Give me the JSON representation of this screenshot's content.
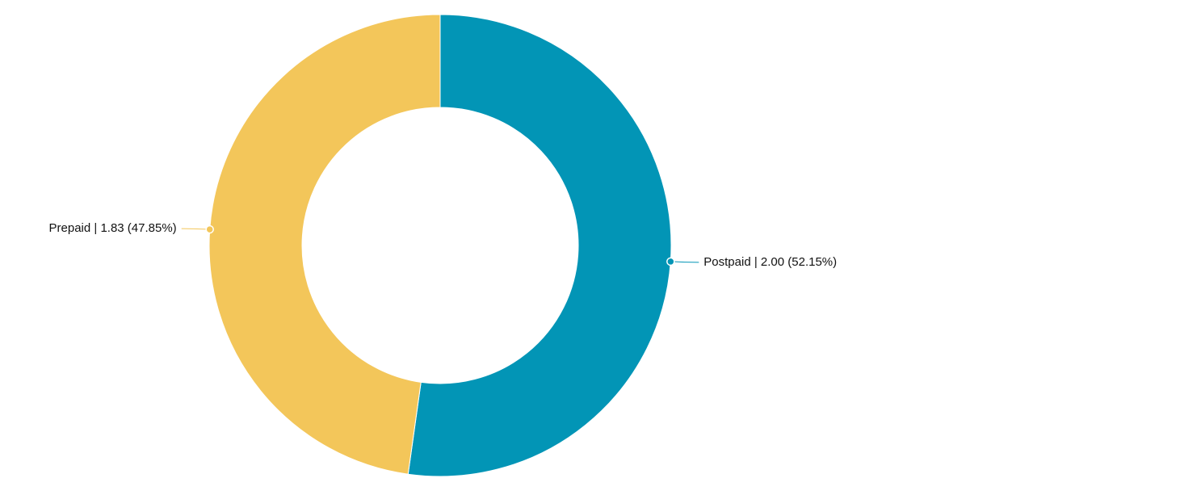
{
  "chart_data": {
    "type": "pie",
    "variant": "donut",
    "slices": [
      {
        "label": "Postpaid",
        "value": 2.0,
        "percent": 52.15,
        "color": "#0295b6",
        "display": "Postpaid | 2.00 (52.15%)"
      },
      {
        "label": "Prepaid",
        "value": 1.83,
        "percent": 47.85,
        "color": "#f3c65a",
        "display": "Prepaid | 1.83 (47.85%)"
      }
    ]
  }
}
